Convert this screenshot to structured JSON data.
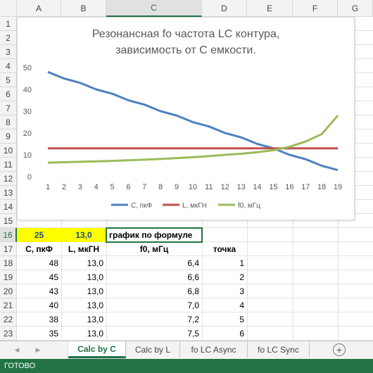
{
  "columns": [
    "A",
    "B",
    "C",
    "D",
    "E",
    "F",
    "G"
  ],
  "selected_column": "C",
  "rows": [
    "1",
    "2",
    "3",
    "4",
    "5",
    "6",
    "7",
    "8",
    "9",
    "10",
    "11",
    "12",
    "13",
    "14",
    "15",
    "16",
    "17",
    "18",
    "19",
    "20",
    "21",
    "22",
    "23"
  ],
  "selected_row": "16",
  "row16": {
    "a": "25",
    "b": "13,0",
    "c": "график по формуле"
  },
  "table_header": {
    "a": "C, пкФ",
    "b": "L, мкГН",
    "c": "f0, мГц",
    "d": "точка"
  },
  "table_rows": [
    {
      "c_val": "48",
      "l_val": "13,0",
      "f0": "6,4",
      "pt": "1"
    },
    {
      "c_val": "45",
      "l_val": "13,0",
      "f0": "6,6",
      "pt": "2"
    },
    {
      "c_val": "43",
      "l_val": "13,0",
      "f0": "6,8",
      "pt": "3"
    },
    {
      "c_val": "40",
      "l_val": "13,0",
      "f0": "7,0",
      "pt": "4"
    },
    {
      "c_val": "38",
      "l_val": "13,0",
      "f0": "7,2",
      "pt": "5"
    },
    {
      "c_val": "35",
      "l_val": "13,0",
      "f0": "7,5",
      "pt": "6"
    }
  ],
  "chart_data": {
    "type": "line",
    "title_line1": "Резонансная fo частота LC контура,",
    "title_line2": "зависимость от С емкости.",
    "x": [
      1,
      2,
      3,
      4,
      5,
      6,
      7,
      8,
      9,
      10,
      11,
      12,
      13,
      14,
      15,
      16,
      17,
      18,
      19
    ],
    "ylim": [
      0,
      50
    ],
    "yticks": [
      "0",
      "10",
      "20",
      "30",
      "40",
      "50"
    ],
    "xticks": [
      "1",
      "2",
      "3",
      "4",
      "5",
      "6",
      "7",
      "8",
      "9",
      "10",
      "11",
      "12",
      "13",
      "14",
      "15",
      "16",
      "17",
      "18",
      "19"
    ],
    "grid": false,
    "legend_position": "bottom",
    "series": [
      {
        "name": "С, пкФ",
        "color": "#4f81bd",
        "values": [
          48,
          45,
          43,
          40,
          38,
          35,
          33,
          30,
          28,
          25,
          23,
          20,
          18,
          15,
          13,
          10,
          8,
          5,
          3
        ]
      },
      {
        "name": "L, мкГН",
        "color": "#c0504d",
        "values": [
          13,
          13,
          13,
          13,
          13,
          13,
          13,
          13,
          13,
          13,
          13,
          13,
          13,
          13,
          13,
          13,
          13,
          13,
          13
        ]
      },
      {
        "name": "f0, мГц",
        "color": "#9bbb59",
        "values": [
          6.4,
          6.6,
          6.8,
          7.0,
          7.2,
          7.5,
          7.8,
          8.1,
          8.5,
          8.9,
          9.4,
          10.0,
          10.5,
          11.2,
          12.1,
          13.7,
          16.1,
          19.5,
          28.0
        ]
      }
    ]
  },
  "tabs": [
    {
      "label": "Calc by C",
      "active": true
    },
    {
      "label": "Calc by L",
      "active": false
    },
    {
      "label": "fo LC Async",
      "active": false
    },
    {
      "label": "fo LC Sync",
      "active": false
    }
  ],
  "add_sheet_symbol": "+",
  "nav_left": "◀",
  "nav_right": "▶",
  "status_text": "ГОТОВО",
  "accent_color": "#217346"
}
